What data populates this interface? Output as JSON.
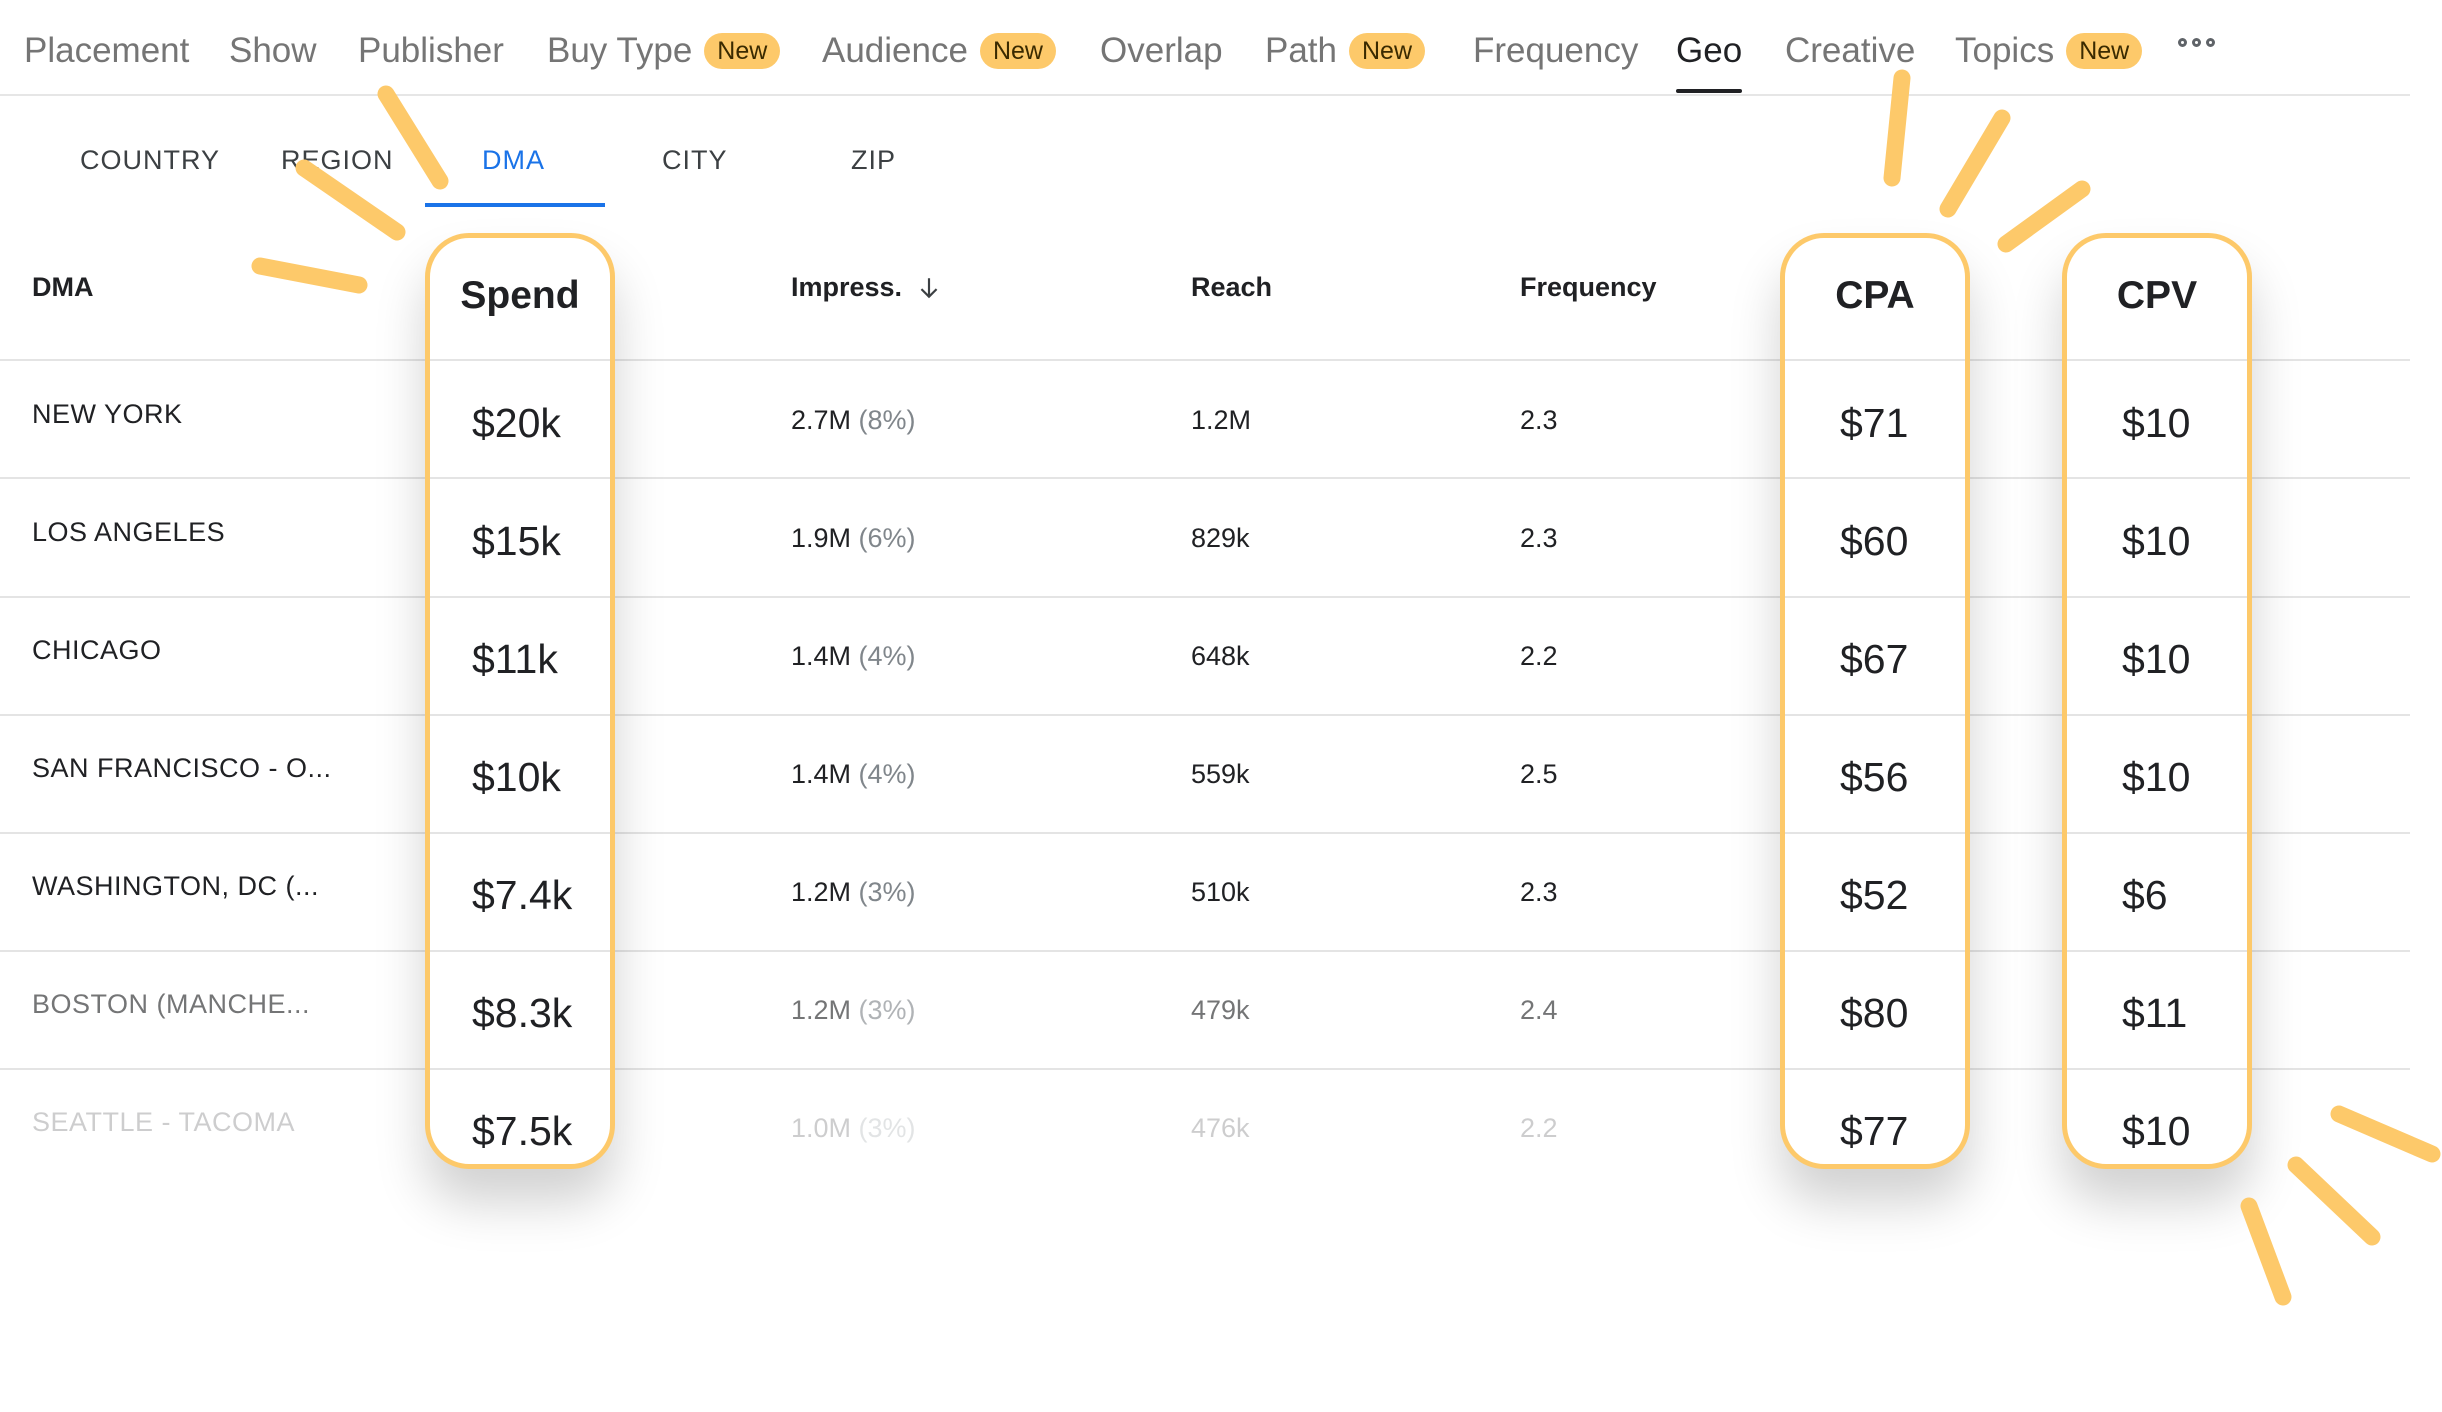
{
  "nav": {
    "items": [
      {
        "label": "Placement",
        "badge": ""
      },
      {
        "label": "Show",
        "badge": ""
      },
      {
        "label": "Publisher",
        "badge": ""
      },
      {
        "label": "Buy Type",
        "badge": "New"
      },
      {
        "label": "Audience",
        "badge": "New"
      },
      {
        "label": "Overlap",
        "badge": ""
      },
      {
        "label": "Path",
        "badge": "New"
      },
      {
        "label": "Frequency",
        "badge": ""
      },
      {
        "label": "Geo",
        "badge": "",
        "active": true
      },
      {
        "label": "Creative",
        "badge": ""
      },
      {
        "label": "Topics",
        "badge": "New"
      }
    ],
    "more_icon": "more-horizontal-icon"
  },
  "subtabs": {
    "items": [
      "COUNTRY",
      "REGION",
      "DMA",
      "CITY",
      "ZIP"
    ],
    "active": "DMA"
  },
  "table": {
    "headers": {
      "dma": "DMA",
      "spend": "Spend",
      "impressions": "Impress.",
      "reach": "Reach",
      "frequency": "Frequency",
      "cpa": "CPA",
      "cpv": "CPV"
    },
    "sort_icon": "arrow-down-icon",
    "rows": [
      {
        "dma": "NEW YORK",
        "spend": "$20k",
        "impressions": "2.7M",
        "share": "(8%)",
        "reach": "1.2M",
        "frequency": "2.3",
        "cpa": "$71",
        "cpv": "$10"
      },
      {
        "dma": "LOS ANGELES",
        "spend": "$15k",
        "impressions": "1.9M",
        "share": "(6%)",
        "reach": "829k",
        "frequency": "2.3",
        "cpa": "$60",
        "cpv": "$10"
      },
      {
        "dma": "CHICAGO",
        "spend": "$11k",
        "impressions": "1.4M",
        "share": "(4%)",
        "reach": "648k",
        "frequency": "2.2",
        "cpa": "$67",
        "cpv": "$10"
      },
      {
        "dma": "SAN FRANCISCO - O...",
        "spend": "$10k",
        "impressions": "1.4M",
        "share": "(4%)",
        "reach": "559k",
        "frequency": "2.5",
        "cpa": "$56",
        "cpv": "$10"
      },
      {
        "dma": "WASHINGTON, DC (...",
        "spend": "$7.4k",
        "impressions": "1.2M",
        "share": "(3%)",
        "reach": "510k",
        "frequency": "2.3",
        "cpa": "$52",
        "cpv": "$6"
      },
      {
        "dma": "BOSTON (MANCHE...",
        "spend": "$8.3k",
        "impressions": "1.2M",
        "share": "(3%)",
        "reach": "479k",
        "frequency": "2.4",
        "cpa": "$80",
        "cpv": "$11"
      },
      {
        "dma": "SEATTLE - TACOMA",
        "spend": "$7.5k",
        "impressions": "1.0M",
        "share": "(3%)",
        "reach": "476k",
        "frequency": "2.2",
        "cpa": "$77",
        "cpv": "$10"
      }
    ]
  },
  "colors": {
    "highlight": "#fdc96a",
    "active_tab": "#1a73e8",
    "badge_bg": "#fdc96a"
  }
}
